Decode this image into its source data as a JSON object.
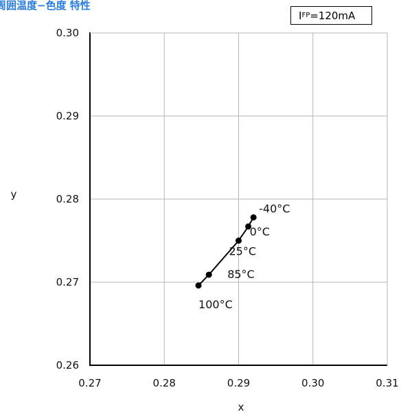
{
  "header": {
    "title": "周囲温度−色度 特性",
    "condition_symbol": "I",
    "condition_subscript": "FP",
    "condition_value": "=120mA"
  },
  "chart_data": {
    "type": "line",
    "title": "周囲温度−色度 特性",
    "xlabel": "x",
    "ylabel": "y",
    "xlim": [
      0.27,
      0.31
    ],
    "ylim": [
      0.26,
      0.3
    ],
    "xticks": [
      "0.27",
      "0.28",
      "0.29",
      "0.30",
      "0.31"
    ],
    "yticks": [
      "0.26",
      "0.27",
      "0.28",
      "0.29",
      "0.30"
    ],
    "grid": true,
    "series": [
      {
        "points": [
          {
            "x": 0.292,
            "y": 0.2778,
            "label": "-40°C"
          },
          {
            "x": 0.2913,
            "y": 0.2767,
            "label": "0°C"
          },
          {
            "x": 0.29,
            "y": 0.275,
            "label": "25°C"
          },
          {
            "x": 0.286,
            "y": 0.2709,
            "label": "85°C"
          },
          {
            "x": 0.2846,
            "y": 0.2696,
            "label": "100°C"
          }
        ]
      }
    ],
    "color": "#000000"
  }
}
